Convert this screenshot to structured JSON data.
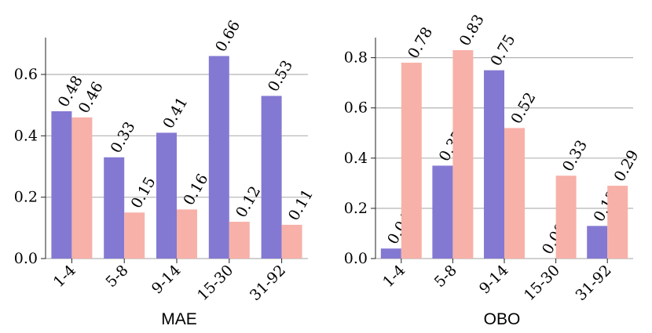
{
  "colors": {
    "series_a": "#8479d2",
    "series_b": "#f7b1a9",
    "grid": "#b3b3b3",
    "axis": "#222222"
  },
  "chart_data": [
    {
      "type": "bar",
      "xlabel": "MAE",
      "ylabel": "",
      "categories": [
        "1-4",
        "5-8",
        "9-14",
        "15-30",
        "31-92"
      ],
      "series": [
        {
          "values": [
            0.48,
            0.33,
            0.41,
            0.66,
            0.53
          ],
          "labels": [
            "0.48",
            "0.33",
            "0.41",
            "0.66",
            "0.53"
          ]
        },
        {
          "values": [
            0.46,
            0.15,
            0.16,
            0.12,
            0.11
          ],
          "labels": [
            "0.46",
            "0.15",
            "0.16",
            "0.12",
            "0.11"
          ]
        }
      ],
      "ylim": [
        0,
        0.72
      ],
      "yticks": [
        0.0,
        0.2,
        0.4,
        0.6
      ],
      "ytick_labels": [
        "0.0",
        "0.2",
        "0.4",
        "0.6"
      ],
      "grid": "horizontal",
      "legend": "none"
    },
    {
      "type": "bar",
      "xlabel": "OBO",
      "ylabel": "",
      "categories": [
        "1-4",
        "5-8",
        "9-14",
        "15-30",
        "31-92"
      ],
      "series": [
        {
          "values": [
            0.04,
            0.37,
            0.75,
            0.0,
            0.13
          ],
          "labels": [
            "0.04",
            "0.37",
            "0.75",
            "0.00",
            "0.13"
          ]
        },
        {
          "values": [
            0.78,
            0.83,
            0.52,
            0.33,
            0.29
          ],
          "labels": [
            "0.78",
            "0.83",
            "0.52",
            "0.33",
            "0.29"
          ]
        }
      ],
      "ylim": [
        0,
        0.88
      ],
      "yticks": [
        0.0,
        0.2,
        0.4,
        0.6,
        0.8
      ],
      "ytick_labels": [
        "0.0",
        "0.2",
        "0.4",
        "0.6",
        "0.8"
      ],
      "grid": "horizontal",
      "legend": "none"
    }
  ]
}
